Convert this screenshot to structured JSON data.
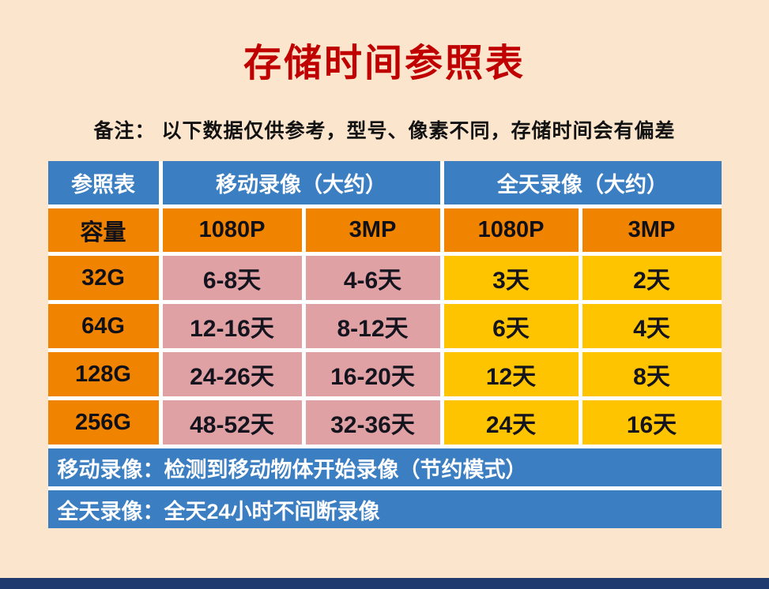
{
  "page": {
    "title": "存储时间参照表",
    "note": "备注： 以下数据仅供参考，型号、像素不同，存储时间会有偏差"
  },
  "table": {
    "top_header": [
      "参照表",
      "移动录像（大约）",
      "全天录像（大约）"
    ],
    "sub_header": [
      "容量",
      "1080P",
      "3MP",
      "1080P",
      "3MP"
    ],
    "rows": [
      [
        "32G",
        "6-8天",
        "4-6天",
        "3天",
        "2天"
      ],
      [
        "64G",
        "12-16天",
        "8-12天",
        "6天",
        "4天"
      ],
      [
        "128G",
        "24-26天",
        "16-20天",
        "12天",
        "8天"
      ],
      [
        "256G",
        "48-52天",
        "32-36天",
        "24天",
        "16天"
      ]
    ],
    "footnotes": [
      "移动录像：检测到移动物体开始录像（节约模式）",
      "全天录像：全天24小时不间断录像"
    ]
  },
  "colors": {
    "background": "#fce5cd",
    "title_red": "#c00000",
    "header_blue": "#3b7ec1",
    "header_orange": "#f08300",
    "cell_pink": "#e0a1a4",
    "cell_yellow": "#ffc400",
    "footer_blue": "#3b7ec1",
    "bottom_strip": "#1e3a6e",
    "data_text": "#14141e"
  },
  "chart_data": {
    "type": "table",
    "title": "存储时间参照表",
    "note": "备注： 以下数据仅供参考，型号、像素不同，存储时间会有偏差",
    "column_groups": [
      "参照表",
      "移动录像（大约）",
      "全天录像（大约）"
    ],
    "columns": [
      "容量",
      "移动录像 1080P",
      "移动录像 3MP",
      "全天录像 1080P",
      "全天录像 3MP"
    ],
    "rows": [
      [
        "32G",
        "6-8天",
        "4-6天",
        "3天",
        "2天"
      ],
      [
        "64G",
        "12-16天",
        "8-12天",
        "6天",
        "4天"
      ],
      [
        "128G",
        "24-26天",
        "16-20天",
        "12天",
        "8天"
      ],
      [
        "256G",
        "48-52天",
        "32-36天",
        "24天",
        "16天"
      ]
    ],
    "footnotes": [
      "移动录像：检测到移动物体开始录像（节约模式）",
      "全天录像：全天24小时不间断录像"
    ]
  }
}
